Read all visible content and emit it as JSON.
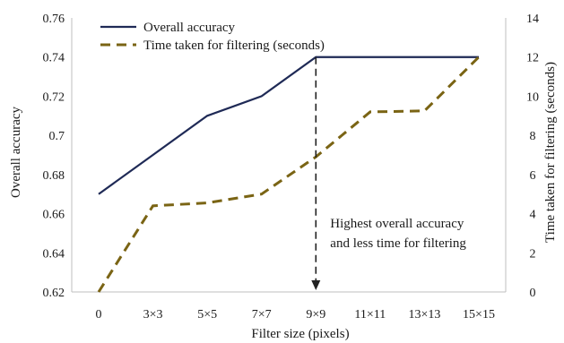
{
  "chart_data": {
    "type": "line",
    "xlabel": "Filter size (pixels)",
    "ylabel_left": "Overall accuracy",
    "ylabel_right": "Time taken for filtering (seconds)",
    "categories": [
      "0",
      "3×3",
      "5×5",
      "7×7",
      "9×9",
      "11×11",
      "13×13",
      "15×15"
    ],
    "ylim_left": [
      0.62,
      0.76
    ],
    "yticks_left": [
      "0.62",
      "0.64",
      "0.66",
      "0.68",
      "0.7",
      "0.72",
      "0.74",
      "0.76"
    ],
    "ylim_right": [
      0,
      14
    ],
    "yticks_right": [
      "0",
      "2",
      "4",
      "6",
      "8",
      "10",
      "12",
      "14"
    ],
    "series": [
      {
        "name": "Overall accuracy",
        "axis": "left",
        "style": "solid",
        "color": "#1f2a56",
        "values": [
          0.67,
          0.69,
          0.71,
          0.72,
          0.74,
          0.74,
          0.74,
          0.74
        ]
      },
      {
        "name": "Time taken for filtering (seconds)",
        "axis": "right",
        "style": "dashed",
        "color": "#7a6414",
        "values": [
          0.0,
          4.4,
          4.55,
          5.0,
          6.9,
          9.2,
          9.25,
          12.0
        ]
      }
    ],
    "annotation": {
      "lines": [
        "Highest overall accuracy",
        "and less time for filtering"
      ],
      "category": "9×9"
    },
    "legend_position": "top-left",
    "grid": false
  }
}
